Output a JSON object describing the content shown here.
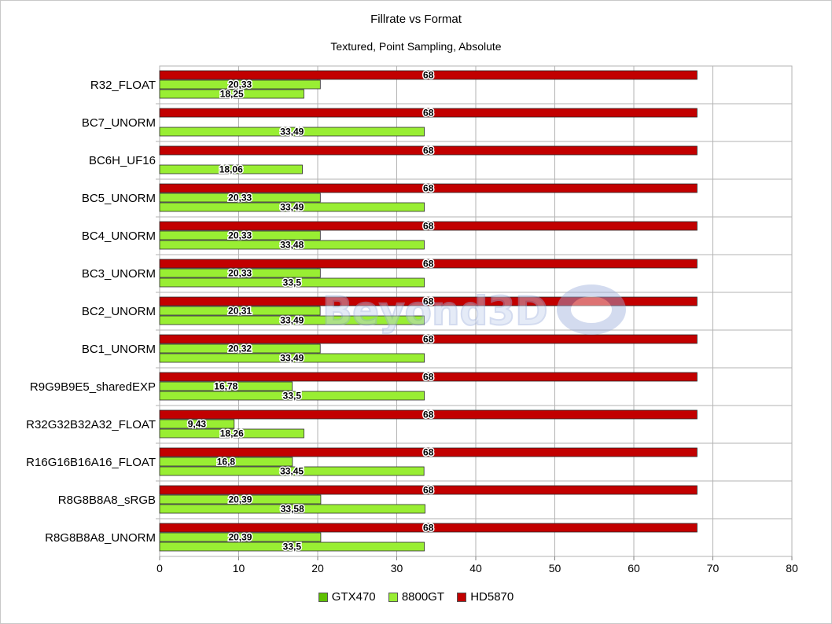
{
  "title": "Fillrate vs Format",
  "subtitle": "Textured, Point Sampling, Absolute",
  "watermark": "Beyond3D",
  "colors": {
    "GTX470": "#5fc100",
    "8800GT": "#99ee33",
    "HD5870": "#c20000",
    "grid": "#b3b3b3"
  },
  "chart_data": {
    "type": "bar",
    "orientation": "horizontal",
    "title": "Fillrate vs Format",
    "subtitle": "Textured, Point Sampling, Absolute",
    "xlabel": "",
    "ylabel": "",
    "xlim": [
      0,
      80
    ],
    "xticks": [
      0,
      10,
      20,
      30,
      40,
      50,
      60,
      70,
      80
    ],
    "grid": true,
    "legend": "bottom",
    "categories": [
      "R32_FLOAT",
      "BC7_UNORM",
      "BC6H_UF16",
      "BC5_UNORM",
      "BC4_UNORM",
      "BC3_UNORM",
      "BC2_UNORM",
      "BC1_UNORM",
      "R9G9B9E5_sharedEXP",
      "R32G32B32A32_FLOAT",
      "R16G16B16A16_FLOAT",
      "R8G8B8A8_sRGB",
      "R8G8B8A8_UNORM"
    ],
    "series": [
      {
        "name": "GTX470",
        "values": [
          null,
          null,
          null,
          null,
          null,
          null,
          null,
          null,
          null,
          null,
          null,
          null,
          null
        ],
        "labels": [
          "",
          "",
          "",
          "",
          "",
          "",
          "",
          "",
          "",
          "",
          "",
          "",
          ""
        ]
      },
      {
        "name": "8800GT",
        "values": [
          18.25,
          33.49,
          18.06,
          33.49,
          33.48,
          33.5,
          33.49,
          33.49,
          33.5,
          18.26,
          33.45,
          33.58,
          33.5
        ],
        "labels": [
          "18,25",
          "33,49",
          "18,06",
          "33,49",
          "33,48",
          "33,5",
          "33,49",
          "33,49",
          "33,5",
          "18,26",
          "33,45",
          "33,58",
          "33,5"
        ]
      },
      {
        "name": "HD5870",
        "values": [
          68,
          68,
          68,
          68,
          68,
          68,
          68,
          68,
          68,
          68,
          68,
          68,
          68
        ],
        "labels": [
          "68",
          "68",
          "68",
          "68",
          "68",
          "68",
          "68",
          "68",
          "68",
          "68",
          "68",
          "68",
          "68"
        ]
      }
    ],
    "middle_series": {
      "values": [
        20.33,
        null,
        null,
        20.33,
        20.33,
        20.33,
        20.31,
        20.32,
        16.78,
        9.43,
        16.8,
        20.39,
        20.39
      ],
      "labels": [
        "20,33",
        "",
        "",
        "20,33",
        "20,33",
        "20,33",
        "20,31",
        "20,32",
        "16,78",
        "9,43",
        "16,8",
        "20,39",
        "20,39"
      ]
    }
  }
}
